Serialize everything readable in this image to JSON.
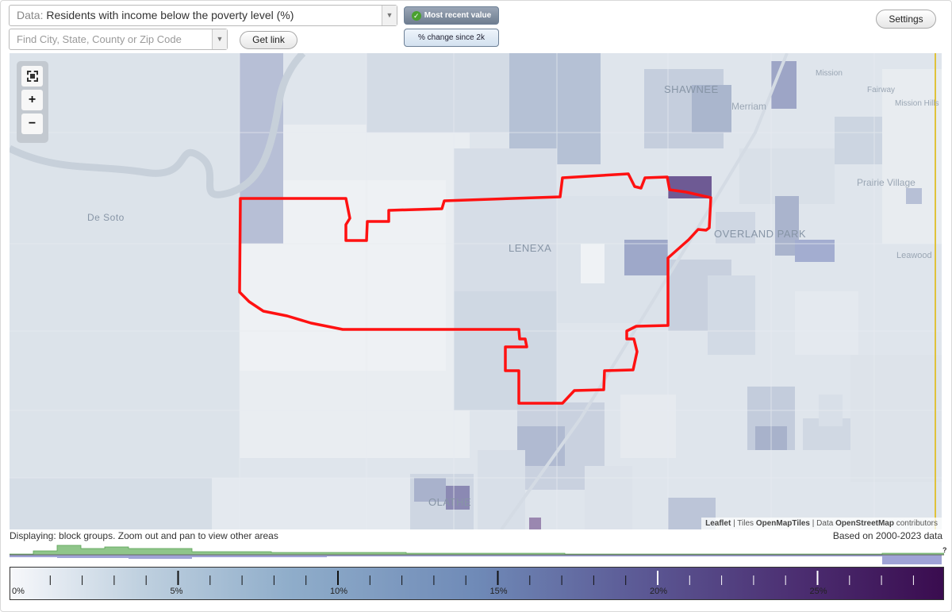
{
  "controls": {
    "data_prefix": "Data:",
    "data_value": "Residents with income below the poverty level (%)",
    "find_placeholder": "Find City, State, County or Zip Code",
    "get_link_label": "Get link",
    "settings_label": "Settings",
    "toggle_recent_label": "Most recent value",
    "toggle_change_label": "% change since 2k"
  },
  "map": {
    "places": [
      "De Soto",
      "SHAWNEE",
      "Merriam",
      "Mission",
      "Fairway",
      "Mission Hills",
      "Prairie Village",
      "LENEXA",
      "OVERLAND PARK",
      "Leawood",
      "OLATHE"
    ],
    "zoom_in_label": "+",
    "zoom_out_label": "−",
    "attribution": {
      "leaflet": "Leaflet",
      "sep1": " | Tiles ",
      "tiles": "OpenMapTiles",
      "sep2": " | Data ",
      "data": "OpenStreetMap",
      "suffix": " contributors"
    },
    "colors": {
      "boundary": "#ff0000",
      "river": "#c9d2dc",
      "highlight": "#5a4a86"
    }
  },
  "footer": {
    "displaying": "Displaying: block groups. Zoom out and pan to view other areas",
    "based_on": "Based on 2000-2023 data",
    "unknown_mark": "?"
  },
  "legend": {
    "labels": [
      "0%",
      "5%",
      "10%",
      "15%",
      "20%",
      "25%"
    ],
    "stops": [
      0,
      5,
      10,
      15,
      20,
      25
    ],
    "max": 29
  }
}
